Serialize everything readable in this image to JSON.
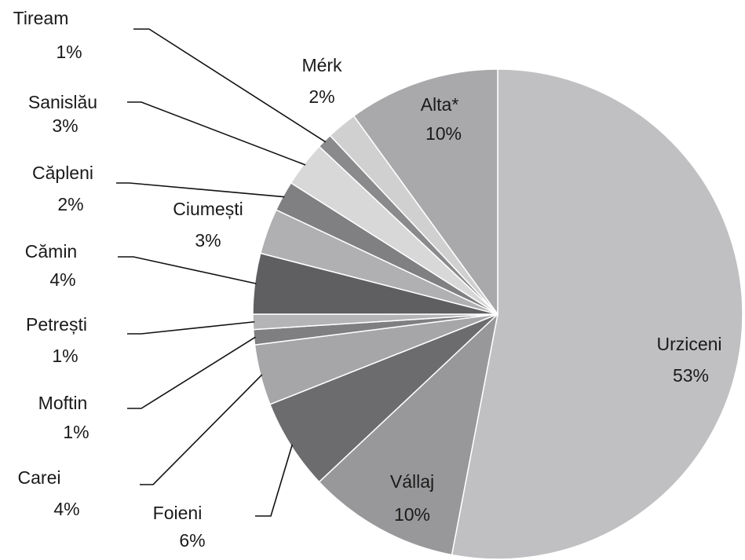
{
  "chart_data": {
    "type": "pie",
    "categories": [
      "Urziceni",
      "Vállaj",
      "Foieni",
      "Carei",
      "Moftin",
      "Petrești",
      "Cămin",
      "Ciumești",
      "Căpleni",
      "Sanislău",
      "Tiream",
      "Mérk",
      "Alta*"
    ],
    "values": [
      53,
      10,
      6,
      4,
      1,
      1,
      4,
      3,
      2,
      3,
      1,
      2,
      10
    ],
    "value_labels": [
      "53%",
      "10%",
      "6%",
      "4%",
      "1%",
      "1%",
      "4%",
      "3%",
      "2%",
      "3%",
      "1%",
      "2%",
      "10%"
    ],
    "colors": [
      "#c0c0c2",
      "#98989a",
      "#6c6c6f",
      "#a6a6a8",
      "#7f7f82",
      "#b4b4b6",
      "#5f5f62",
      "#b0b0b2",
      "#808083",
      "#d8d8d9",
      "#8a8a8c",
      "#d0d0d1",
      "#a9a9ab"
    ]
  }
}
